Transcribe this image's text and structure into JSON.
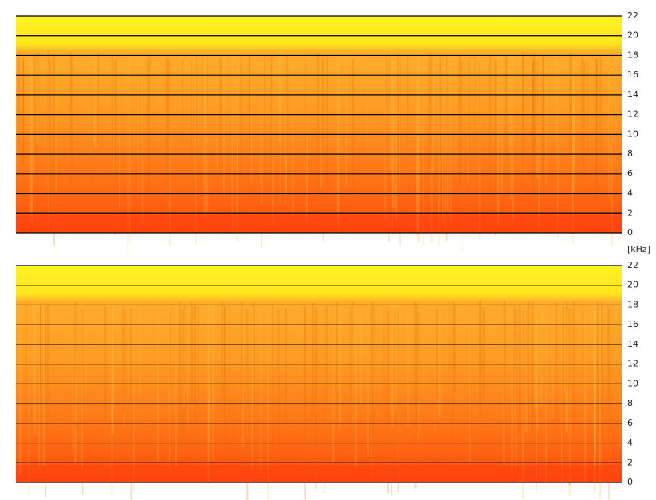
{
  "chart_data": [
    {
      "type": "spectrogram",
      "ylim": [
        0,
        22
      ],
      "yticks": [
        0,
        2,
        4,
        6,
        8,
        10,
        12,
        14,
        16,
        18,
        20,
        22
      ],
      "grid": true
    },
    {
      "type": "spectrogram",
      "ylim": [
        0,
        22
      ],
      "yticks": [
        0,
        2,
        4,
        6,
        8,
        10,
        12,
        14,
        16,
        18,
        20,
        22
      ],
      "grid": true
    }
  ],
  "y_unit_label": "[kHz]"
}
